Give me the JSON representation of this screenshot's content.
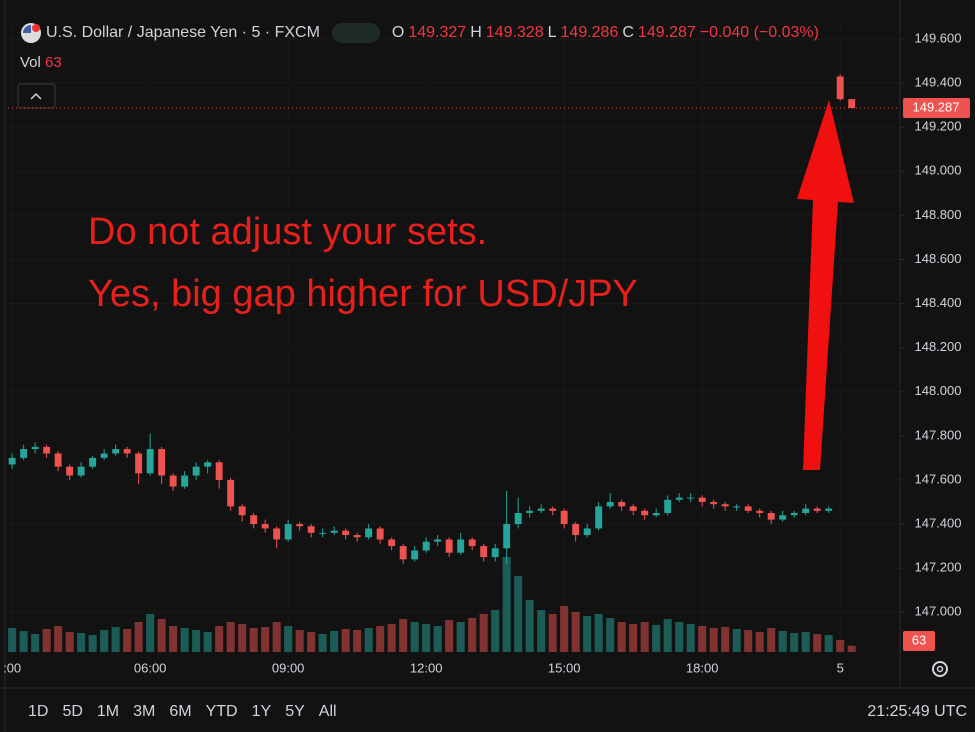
{
  "header": {
    "symbol": "U.S. Dollar / Japanese Yen · 5 · FXCM",
    "ohlc_letters": [
      "O",
      "H",
      "L",
      "C"
    ],
    "change": "−0.040 (−0.03%)",
    "volume_label": "Vol"
  },
  "toolbar": {
    "ranges": [
      "1D",
      "5D",
      "1M",
      "3M",
      "6M",
      "YTD",
      "1Y",
      "5Y",
      "All"
    ],
    "clock": "21:25:49 UTC"
  },
  "chart_data": {
    "type": "candlestick",
    "annotations": [
      "Do not adjust your sets.",
      "Yes, big gap higher for USD/JPY"
    ],
    "up_color": "#26a69a",
    "down_color": "#ef5350",
    "x": [
      3,
      3.25,
      3.5,
      3.75,
      4,
      4.25,
      4.5,
      4.75,
      5,
      5.25,
      5.5,
      5.75,
      6,
      6.25,
      6.5,
      6.75,
      7,
      7.25,
      7.5,
      7.75,
      8,
      8.25,
      8.5,
      8.75,
      9,
      9.25,
      9.5,
      9.75,
      10,
      10.25,
      10.5,
      10.75,
      11,
      11.25,
      11.5,
      11.75,
      12,
      12.25,
      12.5,
      12.75,
      13,
      13.25,
      13.5,
      13.75,
      14,
      14.25,
      14.5,
      14.75,
      15,
      15.25,
      15.5,
      15.75,
      16,
      16.25,
      16.5,
      16.75,
      17,
      17.25,
      17.5,
      17.75,
      18,
      18.25,
      18.5,
      18.75,
      19,
      19.25,
      19.5,
      19.75,
      20,
      20.25,
      20.5,
      20.75,
      21,
      21.25
    ],
    "open": [
      147.67,
      147.7,
      147.74,
      147.75,
      147.72,
      147.66,
      147.62,
      147.66,
      147.7,
      147.72,
      147.74,
      147.72,
      147.63,
      147.74,
      147.62,
      147.57,
      147.62,
      147.66,
      147.68,
      147.6,
      147.48,
      147.44,
      147.4,
      147.38,
      147.33,
      147.4,
      147.39,
      147.36,
      147.36,
      147.37,
      147.35,
      147.34,
      147.38,
      147.33,
      147.3,
      147.24,
      147.28,
      147.32,
      147.33,
      147.27,
      147.33,
      147.3,
      147.25,
      147.29,
      147.4,
      147.45,
      147.46,
      147.47,
      147.46,
      147.4,
      147.35,
      147.38,
      147.48,
      147.5,
      147.48,
      147.46,
      147.44,
      147.45,
      147.51,
      147.52,
      147.52,
      147.5,
      147.49,
      147.48,
      147.48,
      147.46,
      147.45,
      147.42,
      147.44,
      147.45,
      147.47,
      147.46,
      149.43,
      149.327
    ],
    "high": [
      147.72,
      147.76,
      147.77,
      147.76,
      147.73,
      147.67,
      147.68,
      147.71,
      147.74,
      147.76,
      147.75,
      147.73,
      147.81,
      147.75,
      147.63,
      147.64,
      147.68,
      147.69,
      147.69,
      147.61,
      147.49,
      147.45,
      147.42,
      147.39,
      147.42,
      147.41,
      147.4,
      147.38,
      147.39,
      147.38,
      147.36,
      147.4,
      147.39,
      147.34,
      147.31,
      147.3,
      147.34,
      147.35,
      147.34,
      147.36,
      147.34,
      147.31,
      147.31,
      147.55,
      147.52,
      147.48,
      147.49,
      147.48,
      147.47,
      147.41,
      147.4,
      147.5,
      147.54,
      147.51,
      147.49,
      147.47,
      147.47,
      147.53,
      147.54,
      147.54,
      147.53,
      147.51,
      147.5,
      147.49,
      147.49,
      147.47,
      147.46,
      147.46,
      147.46,
      147.49,
      147.48,
      147.48,
      149.44,
      149.328
    ],
    "low": [
      147.65,
      147.69,
      147.72,
      147.7,
      147.64,
      147.6,
      147.61,
      147.65,
      147.69,
      147.71,
      147.7,
      147.58,
      147.62,
      147.58,
      147.55,
      147.56,
      147.6,
      147.63,
      147.56,
      147.46,
      147.41,
      147.38,
      147.36,
      147.29,
      147.32,
      147.37,
      147.34,
      147.34,
      147.35,
      147.33,
      147.32,
      147.33,
      147.31,
      147.28,
      147.22,
      147.23,
      147.27,
      147.3,
      147.25,
      147.26,
      147.28,
      147.23,
      147.23,
      147.22,
      147.38,
      147.43,
      147.45,
      147.44,
      147.38,
      147.32,
      147.34,
      147.37,
      147.47,
      147.46,
      147.44,
      147.42,
      147.43,
      147.44,
      147.5,
      147.5,
      147.48,
      147.47,
      147.46,
      147.46,
      147.45,
      147.43,
      147.4,
      147.41,
      147.43,
      147.44,
      147.45,
      147.45,
      149.32,
      149.286
    ],
    "close": [
      147.7,
      147.74,
      147.75,
      147.72,
      147.66,
      147.62,
      147.66,
      147.7,
      147.72,
      147.74,
      147.72,
      147.63,
      147.74,
      147.62,
      147.57,
      147.62,
      147.66,
      147.68,
      147.6,
      147.48,
      147.44,
      147.4,
      147.38,
      147.33,
      147.4,
      147.39,
      147.36,
      147.36,
      147.37,
      147.35,
      147.34,
      147.38,
      147.33,
      147.3,
      147.24,
      147.28,
      147.32,
      147.33,
      147.27,
      147.33,
      147.3,
      147.25,
      147.29,
      147.4,
      147.45,
      147.46,
      147.47,
      147.46,
      147.4,
      147.35,
      147.38,
      147.48,
      147.5,
      147.48,
      147.46,
      147.44,
      147.45,
      147.51,
      147.52,
      147.52,
      147.5,
      147.49,
      147.48,
      147.48,
      147.46,
      147.45,
      147.42,
      147.44,
      147.45,
      147.47,
      147.46,
      147.47,
      149.327,
      149.287
    ],
    "volume": [
      240,
      210,
      180,
      230,
      260,
      200,
      190,
      170,
      220,
      250,
      230,
      300,
      380,
      330,
      260,
      240,
      220,
      200,
      260,
      300,
      280,
      240,
      250,
      300,
      260,
      220,
      200,
      180,
      210,
      230,
      220,
      240,
      260,
      280,
      330,
      300,
      280,
      260,
      320,
      300,
      340,
      380,
      420,
      950,
      760,
      520,
      420,
      380,
      460,
      400,
      360,
      380,
      340,
      300,
      280,
      300,
      270,
      330,
      300,
      280,
      260,
      240,
      250,
      230,
      220,
      200,
      240,
      210,
      190,
      200,
      180,
      170,
      120,
      63
    ],
    "volume_ylim": [
      0,
      1000
    ],
    "xlim": [
      2.91,
      22.3
    ],
    "xticks": [
      {
        "value": 3,
        "label": ":00"
      },
      {
        "value": 6,
        "label": "06:00"
      },
      {
        "value": 9,
        "label": "09:00"
      },
      {
        "value": 12,
        "label": "12:00"
      },
      {
        "value": 15,
        "label": "15:00"
      },
      {
        "value": 18,
        "label": "18:00"
      },
      {
        "value": 21,
        "label": "5"
      }
    ],
    "ylim": [
      146.806,
      149.686
    ],
    "yticks": [
      {
        "value": 147,
        "label": "147.000"
      },
      {
        "value": 147.2,
        "label": "147.200"
      },
      {
        "value": 147.4,
        "label": "147.400"
      },
      {
        "value": 147.6,
        "label": "147.600"
      },
      {
        "value": 147.8,
        "label": "147.800"
      },
      {
        "value": 148,
        "label": "148.000"
      },
      {
        "value": 148.2,
        "label": "148.200"
      },
      {
        "value": 148.4,
        "label": "148.400"
      },
      {
        "value": 148.6,
        "label": "148.600"
      },
      {
        "value": 148.8,
        "label": "148.800"
      },
      {
        "value": 149,
        "label": "149.000"
      },
      {
        "value": 149.2,
        "label": "149.200"
      },
      {
        "value": 149.4,
        "label": "149.400"
      },
      {
        "value": 149.6,
        "label": "149.600"
      }
    ],
    "grid": true
  }
}
